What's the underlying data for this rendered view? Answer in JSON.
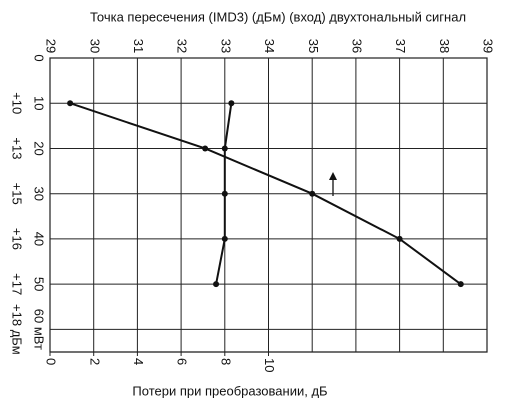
{
  "chart_data": {
    "type": "line",
    "title": "Точка  пересечения (IMD3) (дБм) (вход) двухтональный сигнал",
    "x_top": {
      "lim": [
        29,
        39
      ],
      "ticks": [
        29,
        30,
        31,
        32,
        33,
        34,
        35,
        36,
        37,
        38,
        39
      ]
    },
    "x_bottom": {
      "label": "Потери  при  преобразовании, дБ",
      "lim": [
        0,
        20
      ],
      "ticks": [
        0,
        2,
        4,
        6,
        8,
        10
      ]
    },
    "ylim": [
      0,
      65
    ],
    "yticks": [
      0,
      10,
      20,
      30,
      40,
      50,
      {
        "value": 60,
        "label": "60 мВт"
      }
    ],
    "yticks_dbm": [
      {
        "value": 10,
        "label": "+10"
      },
      {
        "value": 20,
        "label": "+13"
      },
      {
        "value": 30,
        "label": "+15"
      },
      {
        "value": 40,
        "label": "+16"
      },
      {
        "value": 50,
        "label": "+17"
      },
      {
        "value": 60,
        "label": "+18 дБм"
      }
    ],
    "grid": true,
    "series": [
      {
        "xaxis": "top",
        "color": "#111",
        "x": [
          29.46,
          32.55,
          35.0,
          37.0,
          38.4
        ],
        "values": [
          10,
          20,
          30,
          40,
          50
        ]
      },
      {
        "xaxis": "bottom",
        "color": "#111",
        "x": [
          8.3,
          8.0,
          8.0,
          8.0,
          7.6
        ],
        "values": [
          10,
          20,
          30,
          40,
          50
        ]
      }
    ]
  }
}
